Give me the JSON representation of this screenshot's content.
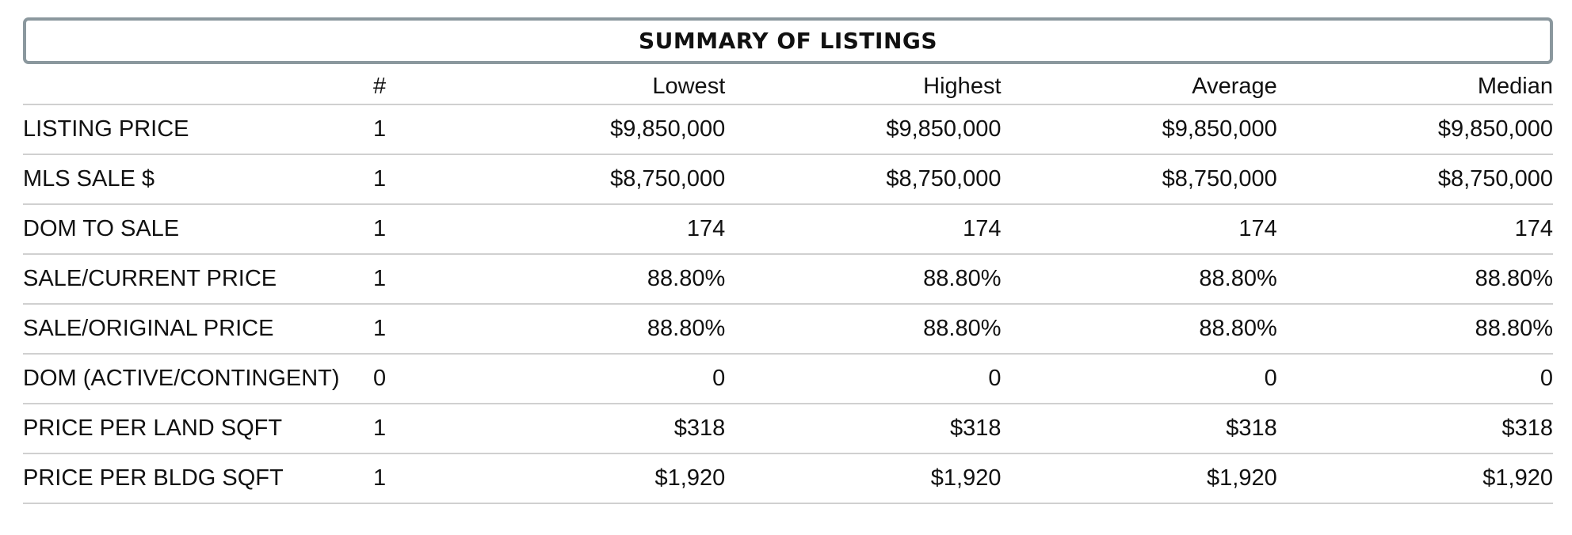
{
  "title": "SUMMARY OF LISTINGS",
  "columns": {
    "label": "",
    "count": "#",
    "lowest": "Lowest",
    "highest": "Highest",
    "average": "Average",
    "median": "Median"
  },
  "rows": [
    {
      "label": "LISTING PRICE",
      "count": "1",
      "lowest": "$9,850,000",
      "highest": "$9,850,000",
      "average": "$9,850,000",
      "median": "$9,850,000"
    },
    {
      "label": "MLS SALE $",
      "count": "1",
      "lowest": "$8,750,000",
      "highest": "$8,750,000",
      "average": "$8,750,000",
      "median": "$8,750,000"
    },
    {
      "label": "DOM TO SALE",
      "count": "1",
      "lowest": "174",
      "highest": "174",
      "average": "174",
      "median": "174"
    },
    {
      "label": "SALE/CURRENT PRICE",
      "count": "1",
      "lowest": "88.80%",
      "highest": "88.80%",
      "average": "88.80%",
      "median": "88.80%"
    },
    {
      "label": "SALE/ORIGINAL PRICE",
      "count": "1",
      "lowest": "88.80%",
      "highest": "88.80%",
      "average": "88.80%",
      "median": "88.80%"
    },
    {
      "label": "DOM (ACTIVE/CONTINGENT)",
      "count": "0",
      "lowest": "0",
      "highest": "0",
      "average": "0",
      "median": "0"
    },
    {
      "label": "PRICE PER LAND SQFT",
      "count": "1",
      "lowest": "$318",
      "highest": "$318",
      "average": "$318",
      "median": "$318"
    },
    {
      "label": "PRICE PER BLDG SQFT",
      "count": "1",
      "lowest": "$1,920",
      "highest": "$1,920",
      "average": "$1,920",
      "median": "$1,920"
    }
  ]
}
